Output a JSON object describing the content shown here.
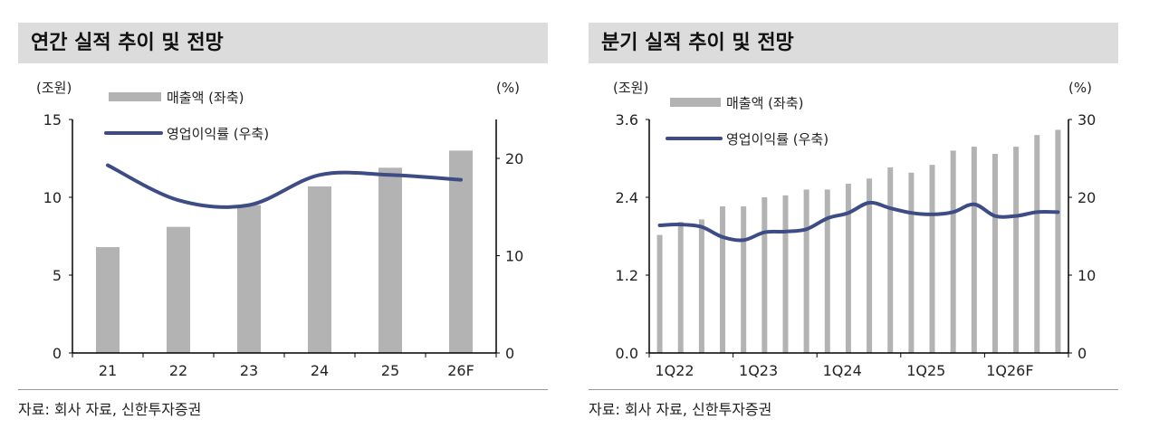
{
  "chart_data": [
    {
      "type": "bar+line",
      "title": "연간 실적 추이 및 전망",
      "left_unit": "(조원)",
      "right_unit": "(%)",
      "categories": [
        "21",
        "22",
        "23",
        "24",
        "25",
        "26F"
      ],
      "series": [
        {
          "name": "매출액 (좌축)",
          "type": "bar",
          "axis": "left",
          "values": [
            6.8,
            8.1,
            9.5,
            10.7,
            11.9,
            13.0
          ]
        },
        {
          "name": "영업이익률 (우축)",
          "type": "line",
          "axis": "right",
          "values": [
            19.3,
            15.7,
            15.2,
            18.3,
            18.3,
            17.8
          ]
        }
      ],
      "ylim": [
        0,
        15
      ],
      "yticks": [
        "0",
        "5",
        "10",
        "15"
      ],
      "y2lim": [
        0,
        24
      ],
      "y2ticks": [
        "0",
        "10",
        "20"
      ],
      "xticklabels": [
        "21",
        "22",
        "23",
        "24",
        "25",
        "26F"
      ],
      "source": "자료: 회사 자료, 신한투자증권"
    },
    {
      "type": "bar+line",
      "title": "분기 실적 추이 및 전망",
      "left_unit": "(조원)",
      "right_unit": "(%)",
      "categories": [
        "1Q22",
        "2Q22",
        "3Q22",
        "4Q22",
        "1Q23",
        "2Q23",
        "3Q23",
        "4Q23",
        "1Q24",
        "2Q24",
        "3Q24",
        "4Q24",
        "1Q25",
        "2Q25",
        "3Q25",
        "4Q25",
        "1Q26F",
        "2Q26F",
        "3Q26F",
        "4Q26F"
      ],
      "series": [
        {
          "name": "매출액 (좌축)",
          "type": "bar",
          "axis": "left",
          "values": [
            1.82,
            2.02,
            2.06,
            2.26,
            2.26,
            2.4,
            2.43,
            2.52,
            2.52,
            2.61,
            2.69,
            2.86,
            2.78,
            2.9,
            3.12,
            3.18,
            3.07,
            3.18,
            3.36,
            3.44
          ]
        },
        {
          "name": "영업이익률 (우축)",
          "type": "line",
          "axis": "right",
          "values": [
            16.4,
            16.5,
            16.2,
            14.9,
            14.5,
            15.5,
            15.6,
            15.9,
            17.3,
            18.0,
            19.3,
            18.6,
            18.0,
            17.8,
            18.1,
            19.1,
            17.6,
            17.6,
            18.1,
            18.1
          ]
        }
      ],
      "ylim": [
        0,
        3.6
      ],
      "yticks": [
        "0.0",
        "1.2",
        "2.4",
        "3.6"
      ],
      "y2lim": [
        0,
        30
      ],
      "y2ticks": [
        "0",
        "10",
        "20",
        "30"
      ],
      "xticklabels": [
        "1Q22",
        "1Q23",
        "1Q24",
        "1Q25",
        "1Q26F"
      ],
      "source": "자료: 회사 자료, 신한투자증권"
    }
  ],
  "colors": {
    "bar": "#b3b3b3",
    "line": "#3e4c85",
    "title_bg": "#dcdcdc"
  }
}
